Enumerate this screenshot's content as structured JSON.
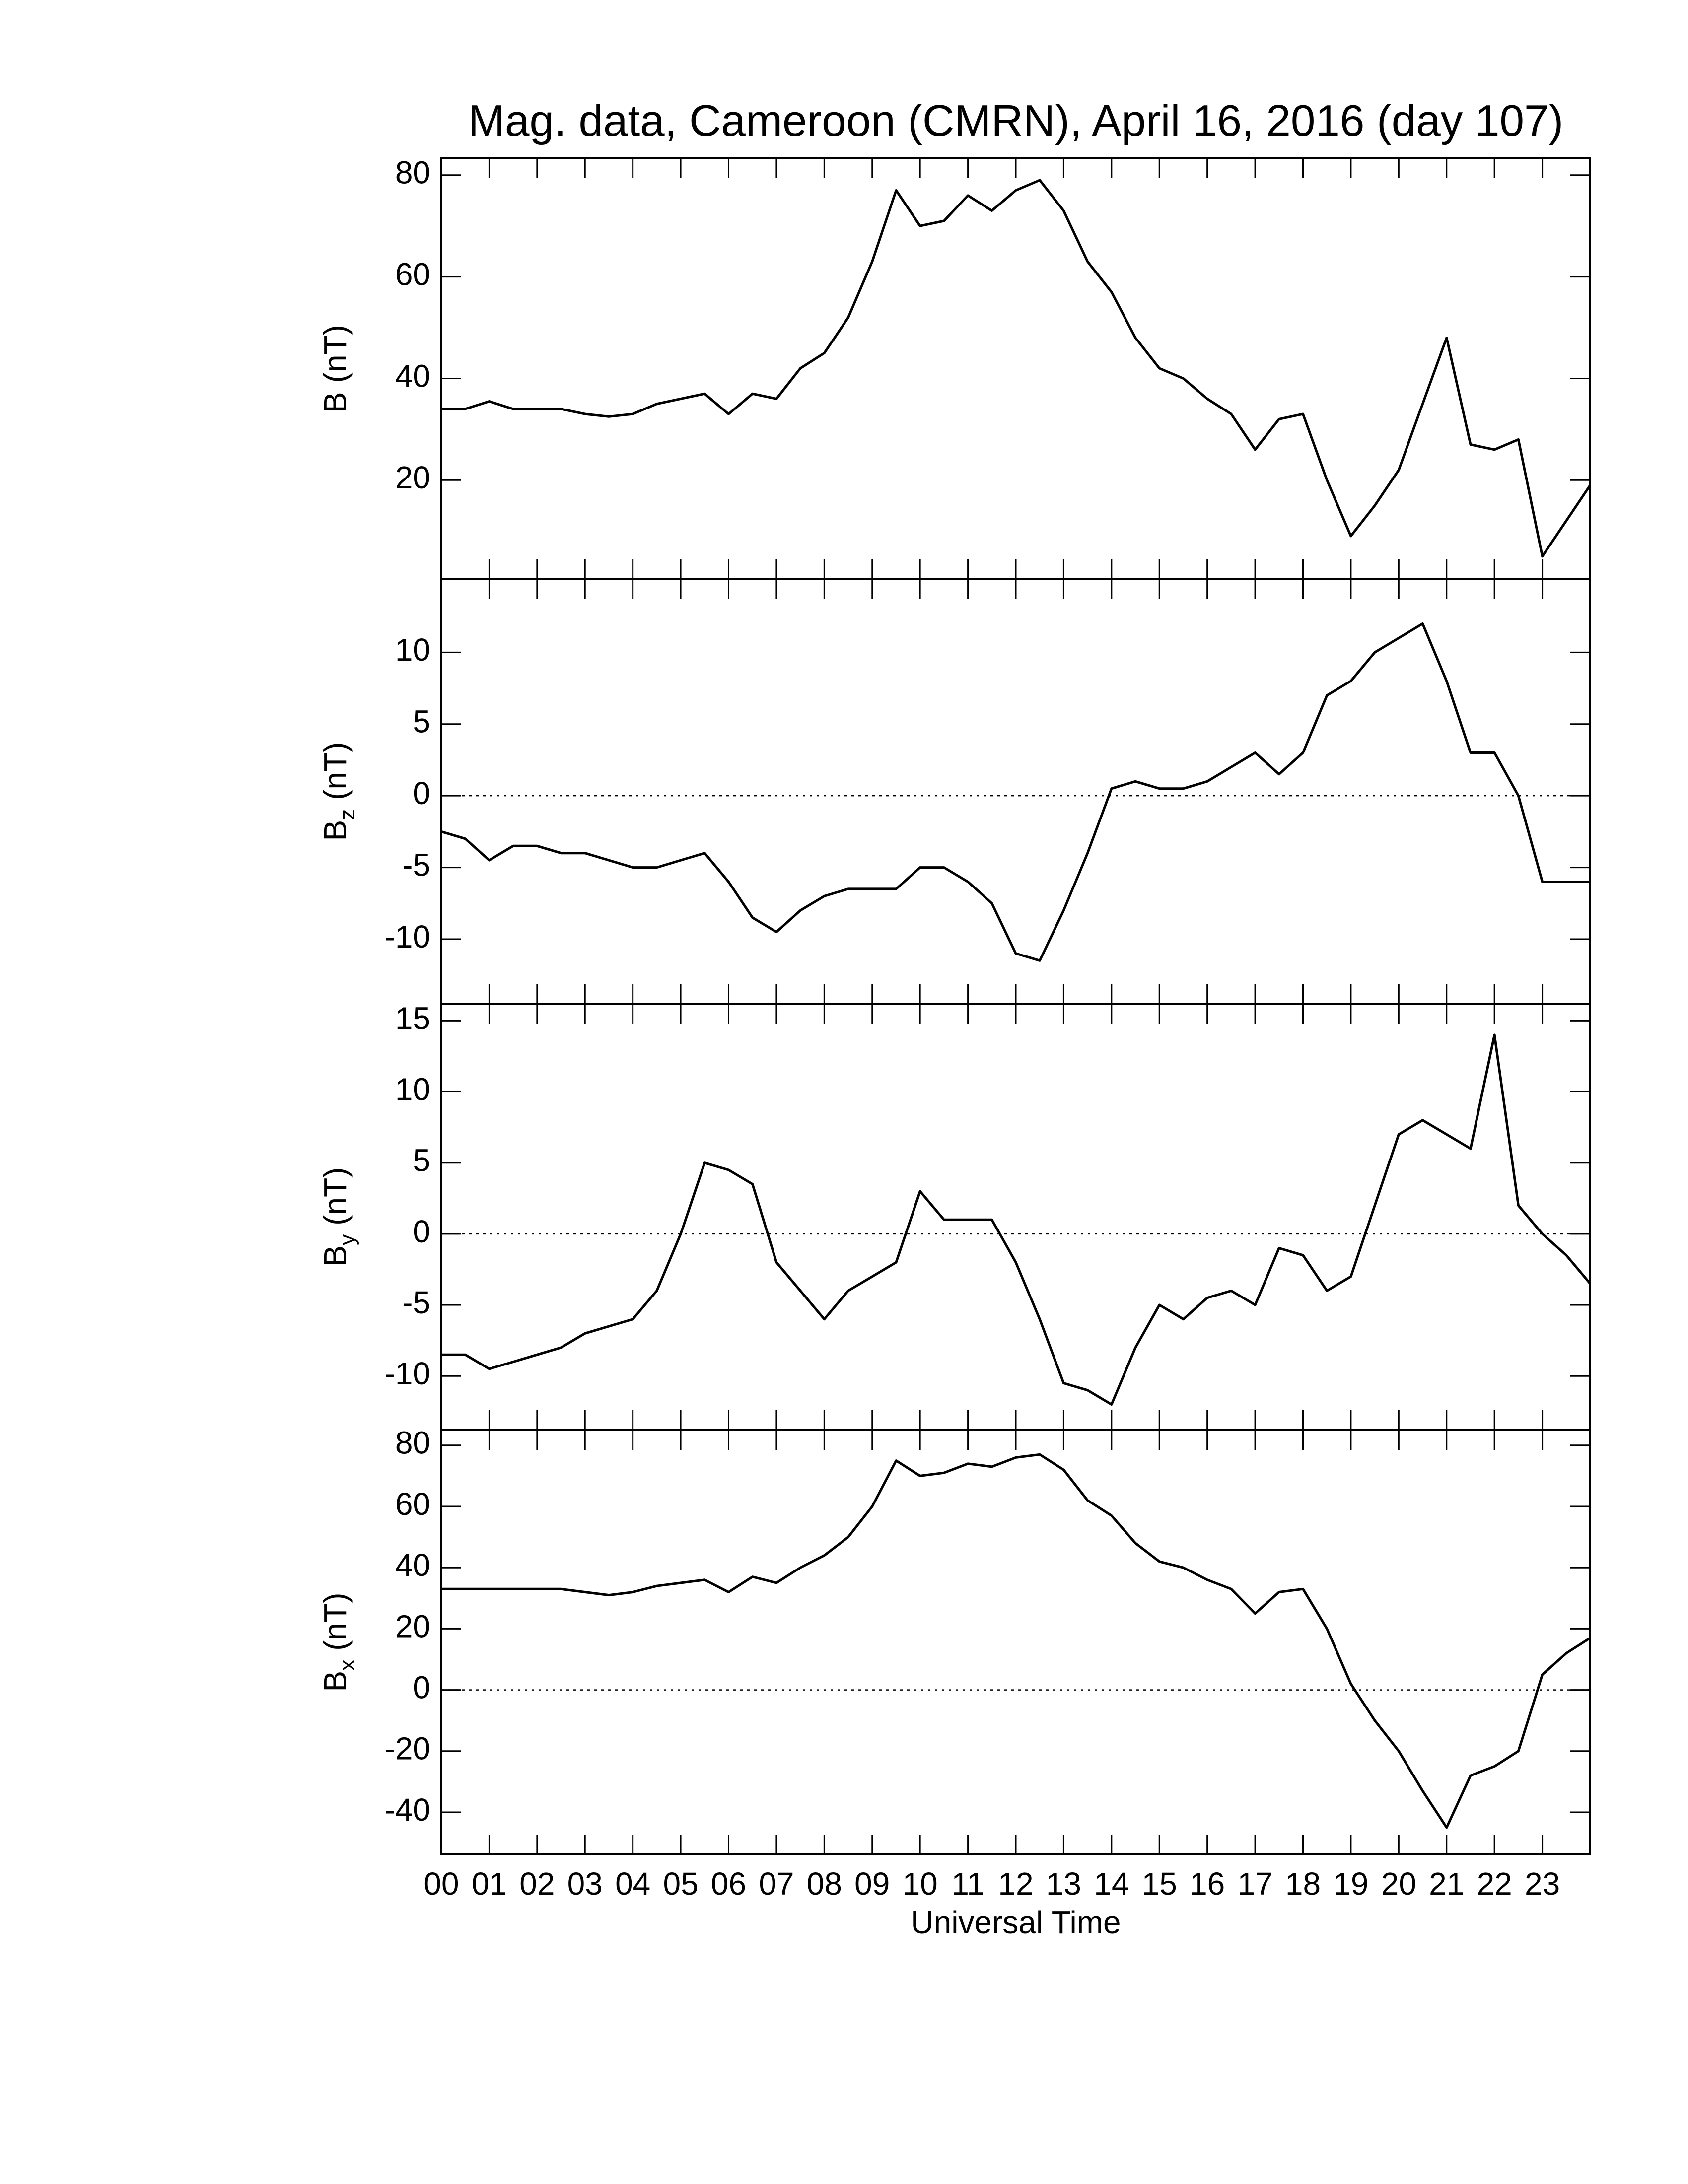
{
  "chart_data": [
    {
      "type": "line",
      "title": "Mag. data, Cameroon (CMRN), April 16, 2016 (day 107)",
      "ylabel": "B",
      "ylabel_unit": "(nT)",
      "color": "#000000",
      "x": [
        0,
        0.5,
        1,
        1.5,
        2,
        2.5,
        3,
        3.5,
        4,
        4.5,
        5,
        5.5,
        6,
        6.5,
        7,
        7.5,
        8,
        8.5,
        9,
        9.5,
        10,
        10.5,
        11,
        11.5,
        12,
        12.5,
        13,
        13.5,
        14,
        14.5,
        15,
        15.5,
        16,
        16.5,
        17,
        17.5,
        18,
        18.5,
        19,
        19.5,
        20,
        20.5,
        21,
        21.5,
        22,
        22.5,
        23,
        23.5,
        24
      ],
      "values": [
        34,
        34,
        35.5,
        34,
        34,
        34,
        33,
        32.5,
        33,
        35,
        36,
        37,
        33,
        37,
        36,
        42,
        45,
        52,
        63,
        77,
        70,
        71,
        76,
        73,
        77,
        79,
        73,
        63,
        57,
        48,
        42,
        40,
        36,
        33,
        26,
        32,
        33,
        20,
        9,
        15,
        22,
        35,
        48,
        27,
        26,
        28,
        5,
        12,
        19
      ],
      "xlim": [
        0,
        24
      ],
      "ylim": [
        0.5,
        83.3
      ],
      "yticks": [
        20,
        40,
        60,
        80
      ],
      "zero_line": false
    },
    {
      "type": "line",
      "ylabel": "B",
      "ylabel_sub": "z",
      "ylabel_unit": "(nT)",
      "color": "#000000",
      "x": [
        0,
        0.5,
        1,
        1.5,
        2,
        2.5,
        3,
        3.5,
        4,
        4.5,
        5,
        5.5,
        6,
        6.5,
        7,
        7.5,
        8,
        8.5,
        9,
        9.5,
        10,
        10.5,
        11,
        11.5,
        12,
        12.5,
        13,
        13.5,
        14,
        14.5,
        15,
        15.5,
        16,
        16.5,
        17,
        17.5,
        18,
        18.5,
        19,
        19.5,
        20,
        20.5,
        21,
        21.5,
        22,
        22.5,
        23,
        23.5,
        24
      ],
      "values": [
        -2.5,
        -3,
        -4.5,
        -3.5,
        -3.5,
        -4,
        -4,
        -4.5,
        -5,
        -5,
        -4.5,
        -4,
        -6,
        -8.5,
        -9.5,
        -8,
        -7,
        -6.5,
        -6.5,
        -6.5,
        -5,
        -5,
        -6,
        -7.5,
        -11,
        -11.5,
        -8,
        -4,
        0.5,
        1,
        0.5,
        0.5,
        1,
        2,
        3,
        1.5,
        3,
        7,
        8,
        10,
        11,
        12,
        8,
        3,
        3,
        0,
        -6,
        -6,
        -6
      ],
      "xlim": [
        0,
        24
      ],
      "ylim": [
        -14.5,
        15.1
      ],
      "yticks": [
        -10,
        -5,
        0,
        5,
        10
      ],
      "zero_line": true
    },
    {
      "type": "line",
      "ylabel": "B",
      "ylabel_sub": "y",
      "ylabel_unit": "(nT)",
      "color": "#000000",
      "x": [
        0,
        0.5,
        1,
        1.5,
        2,
        2.5,
        3,
        3.5,
        4,
        4.5,
        5,
        5.5,
        6,
        6.5,
        7,
        7.5,
        8,
        8.5,
        9,
        9.5,
        10,
        10.5,
        11,
        11.5,
        12,
        12.5,
        13,
        13.5,
        14,
        14.5,
        15,
        15.5,
        16,
        16.5,
        17,
        17.5,
        18,
        18.5,
        19,
        19.5,
        20,
        20.5,
        21,
        21.5,
        22,
        22.5,
        23,
        23.5,
        24
      ],
      "values": [
        -8.5,
        -8.5,
        -9.5,
        -9,
        -8.5,
        -8,
        -7,
        -6.5,
        -6,
        -4,
        0,
        5,
        4.5,
        3.5,
        -2,
        -4,
        -6,
        -4,
        -3,
        -2,
        3,
        1,
        1,
        1,
        -2,
        -6,
        -10.5,
        -11,
        -12,
        -8,
        -5,
        -6,
        -4.5,
        -4,
        -5,
        -1,
        -1.5,
        -4,
        -3,
        2,
        7,
        8,
        7,
        6,
        14,
        2,
        0,
        -1.5,
        -3.5
      ],
      "xlim": [
        0,
        24
      ],
      "ylim": [
        -13.8,
        16.2
      ],
      "yticks": [
        -10,
        -5,
        0,
        5,
        10,
        15
      ],
      "zero_line": true
    },
    {
      "type": "line",
      "ylabel": "B",
      "ylabel_sub": "x",
      "ylabel_unit": "(nT)",
      "xlabel": "Universal Time",
      "color": "#000000",
      "x": [
        0,
        0.5,
        1,
        1.5,
        2,
        2.5,
        3,
        3.5,
        4,
        4.5,
        5,
        5.5,
        6,
        6.5,
        7,
        7.5,
        8,
        8.5,
        9,
        9.5,
        10,
        10.5,
        11,
        11.5,
        12,
        12.5,
        13,
        13.5,
        14,
        14.5,
        15,
        15.5,
        16,
        16.5,
        17,
        17.5,
        18,
        18.5,
        19,
        19.5,
        20,
        20.5,
        21,
        21.5,
        22,
        22.5,
        23,
        23.5,
        24
      ],
      "values": [
        33,
        33,
        33,
        33,
        33,
        33,
        32,
        31,
        32,
        34,
        35,
        36,
        32,
        37,
        35,
        40,
        44,
        50,
        60,
        75,
        70,
        71,
        74,
        73,
        76,
        77,
        72,
        62,
        57,
        48,
        42,
        40,
        36,
        33,
        25,
        32,
        33,
        20,
        2,
        -10,
        -20,
        -33,
        -45,
        -28,
        -25,
        -20,
        5,
        12,
        17
      ],
      "xlim": [
        0,
        24
      ],
      "ylim": [
        -53.8,
        85
      ],
      "yticks": [
        -40,
        -20,
        0,
        20,
        40,
        60,
        80
      ],
      "zero_line": true,
      "xticks": [
        {
          "value": 0,
          "label": "00"
        },
        {
          "value": 1,
          "label": "01"
        },
        {
          "value": 2,
          "label": "02"
        },
        {
          "value": 3,
          "label": "03"
        },
        {
          "value": 4,
          "label": "04"
        },
        {
          "value": 5,
          "label": "05"
        },
        {
          "value": 6,
          "label": "06"
        },
        {
          "value": 7,
          "label": "07"
        },
        {
          "value": 8,
          "label": "08"
        },
        {
          "value": 9,
          "label": "09"
        },
        {
          "value": 10,
          "label": "10"
        },
        {
          "value": 11,
          "label": "11"
        },
        {
          "value": 12,
          "label": "12"
        },
        {
          "value": 13,
          "label": "13"
        },
        {
          "value": 14,
          "label": "14"
        },
        {
          "value": 15,
          "label": "15"
        },
        {
          "value": 16,
          "label": "16"
        },
        {
          "value": 17,
          "label": "17"
        },
        {
          "value": 18,
          "label": "18"
        },
        {
          "value": 19,
          "label": "19"
        },
        {
          "value": 20,
          "label": "20"
        },
        {
          "value": 21,
          "label": "21"
        },
        {
          "value": 22,
          "label": "22"
        },
        {
          "value": 23,
          "label": "23"
        }
      ]
    }
  ]
}
